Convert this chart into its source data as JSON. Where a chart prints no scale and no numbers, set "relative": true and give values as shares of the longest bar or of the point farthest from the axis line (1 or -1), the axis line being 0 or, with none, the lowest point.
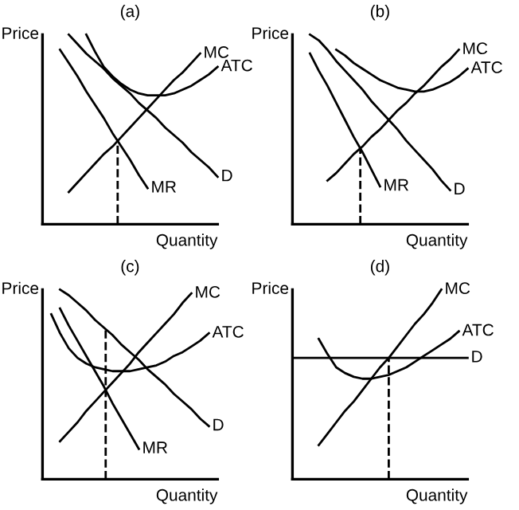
{
  "chart_data": [
    {
      "type": "line",
      "title": "(a)",
      "xlabel": "Quantity",
      "ylabel": "Price",
      "relative": true,
      "categories": [
        null,
        null,
        null,
        null,
        null,
        null,
        null,
        null,
        null,
        null,
        null,
        null,
        null,
        null,
        null,
        null,
        null,
        null,
        null,
        null,
        null
      ],
      "series": [
        {
          "name": "MC",
          "color": "#000000",
          "values": [
            null,
            null,
            null,
            0.17,
            0.22,
            0.27,
            0.32,
            0.37,
            0.41,
            0.46,
            0.51,
            0.56,
            0.61,
            0.66,
            0.71,
            0.76,
            0.8,
            0.85,
            0.9,
            null,
            null
          ]
        },
        {
          "name": "ATC",
          "color": "#000000",
          "values": [
            null,
            null,
            null,
            null,
            null,
            1.0,
            0.91,
            0.83,
            0.78,
            0.74,
            0.71,
            0.69,
            0.68,
            0.68,
            0.68,
            0.69,
            0.71,
            0.73,
            0.76,
            0.79,
            0.83
          ]
        },
        {
          "name": "D",
          "color": "#000000",
          "values": [
            null,
            null,
            null,
            1.0,
            0.95,
            0.9,
            0.86,
            0.82,
            0.77,
            0.73,
            0.69,
            0.64,
            0.6,
            0.56,
            0.51,
            0.47,
            0.43,
            0.38,
            0.34,
            0.3,
            0.25
          ]
        },
        {
          "name": "MR",
          "color": "#000000",
          "values": [
            null,
            null,
            0.92,
            0.85,
            0.78,
            0.7,
            0.63,
            0.56,
            0.48,
            0.41,
            0.34,
            0.26,
            0.19,
            null,
            null,
            null,
            null,
            null,
            null,
            null,
            null
          ]
        }
      ]
    },
    {
      "type": "line",
      "title": "(b)",
      "xlabel": "Quantity",
      "ylabel": "Price",
      "relative": true,
      "categories": [
        null,
        null,
        null,
        null,
        null,
        null,
        null,
        null,
        null,
        null,
        null,
        null,
        null,
        null,
        null,
        null,
        null,
        null,
        null,
        null,
        null
      ],
      "series": [
        {
          "name": "MC",
          "color": "#000000",
          "values": [
            null,
            null,
            null,
            null,
            0.23,
            0.27,
            0.32,
            0.37,
            0.41,
            0.46,
            0.5,
            0.55,
            0.6,
            0.64,
            0.69,
            0.73,
            0.78,
            0.83,
            0.87,
            0.92,
            null
          ]
        },
        {
          "name": "ATC",
          "color": "#000000",
          "values": [
            null,
            null,
            null,
            null,
            null,
            0.92,
            0.89,
            0.85,
            0.82,
            0.79,
            0.76,
            0.74,
            0.72,
            0.71,
            0.7,
            0.7,
            0.71,
            0.73,
            0.75,
            0.78,
            0.82
          ]
        },
        {
          "name": "D",
          "color": "#000000",
          "values": [
            null,
            null,
            1.0,
            0.97,
            0.92,
            0.86,
            0.81,
            0.76,
            0.71,
            0.65,
            0.6,
            0.55,
            0.5,
            0.44,
            0.39,
            0.34,
            0.29,
            0.23,
            0.18,
            null,
            null
          ]
        },
        {
          "name": "MR",
          "color": "#000000",
          "values": [
            null,
            null,
            0.9,
            0.81,
            0.73,
            0.64,
            0.55,
            0.46,
            0.38,
            0.29,
            0.2,
            null,
            null,
            null,
            null,
            null,
            null,
            null,
            null,
            null,
            null
          ]
        }
      ]
    },
    {
      "type": "line",
      "title": "(c)",
      "xlabel": "Quantity",
      "ylabel": "Price",
      "relative": true,
      "categories": [
        null,
        null,
        null,
        null,
        null,
        null,
        null,
        null,
        null,
        null,
        null,
        null,
        null,
        null,
        null,
        null,
        null,
        null,
        null,
        null,
        null
      ],
      "series": [
        {
          "name": "MC",
          "color": "#000000",
          "values": [
            null,
            null,
            0.2,
            0.25,
            0.3,
            0.36,
            0.41,
            0.46,
            0.51,
            0.56,
            0.61,
            0.67,
            0.72,
            0.77,
            0.82,
            0.87,
            0.93,
            0.98,
            null,
            null,
            null
          ]
        },
        {
          "name": "ATC",
          "color": "#000000",
          "values": [
            null,
            0.87,
            0.77,
            0.69,
            0.64,
            0.61,
            0.59,
            0.58,
            0.57,
            0.57,
            0.57,
            0.58,
            0.59,
            0.6,
            0.62,
            0.65,
            0.67,
            0.7,
            0.73,
            0.77,
            null
          ]
        },
        {
          "name": "D",
          "color": "#000000",
          "values": [
            null,
            null,
            1.0,
            0.97,
            0.93,
            0.89,
            0.84,
            0.8,
            0.76,
            0.71,
            0.67,
            0.63,
            0.58,
            0.54,
            0.5,
            0.45,
            0.41,
            0.37,
            0.32,
            0.28,
            null
          ]
        },
        {
          "name": "MR",
          "color": "#000000",
          "values": [
            null,
            null,
            0.9,
            0.81,
            0.73,
            0.65,
            0.57,
            0.49,
            0.4,
            0.32,
            0.24,
            0.16,
            null,
            null,
            null,
            null,
            null,
            null,
            null,
            null,
            null
          ]
        }
      ]
    },
    {
      "type": "line",
      "title": "(d)",
      "xlabel": "Quantity",
      "ylabel": "Price",
      "relative": true,
      "categories": [
        null,
        null,
        null,
        null,
        null,
        null,
        null,
        null,
        null,
        null,
        null,
        null,
        null,
        null,
        null,
        null,
        null,
        null,
        null,
        null,
        null
      ],
      "series": [
        {
          "name": "MC",
          "color": "#000000",
          "values": [
            null,
            null,
            null,
            0.18,
            0.24,
            0.3,
            0.36,
            0.41,
            0.47,
            0.53,
            0.59,
            0.64,
            0.7,
            0.76,
            0.82,
            0.87,
            0.93,
            1.0,
            null,
            null,
            null
          ]
        },
        {
          "name": "ATC",
          "color": "#000000",
          "values": [
            null,
            null,
            null,
            0.74,
            0.66,
            0.59,
            0.56,
            0.54,
            0.53,
            0.53,
            0.54,
            0.55,
            0.57,
            0.59,
            0.62,
            0.65,
            0.68,
            0.71,
            0.74,
            0.78,
            null
          ]
        },
        {
          "name": "D",
          "color": "#000000",
          "values": [
            0.64,
            0.64,
            0.64,
            0.64,
            0.64,
            0.64,
            0.64,
            0.64,
            0.64,
            0.64,
            0.64,
            0.64,
            0.64,
            0.64,
            0.64,
            0.64,
            0.64,
            0.64,
            0.64,
            0.64,
            0.64
          ]
        }
      ]
    }
  ]
}
